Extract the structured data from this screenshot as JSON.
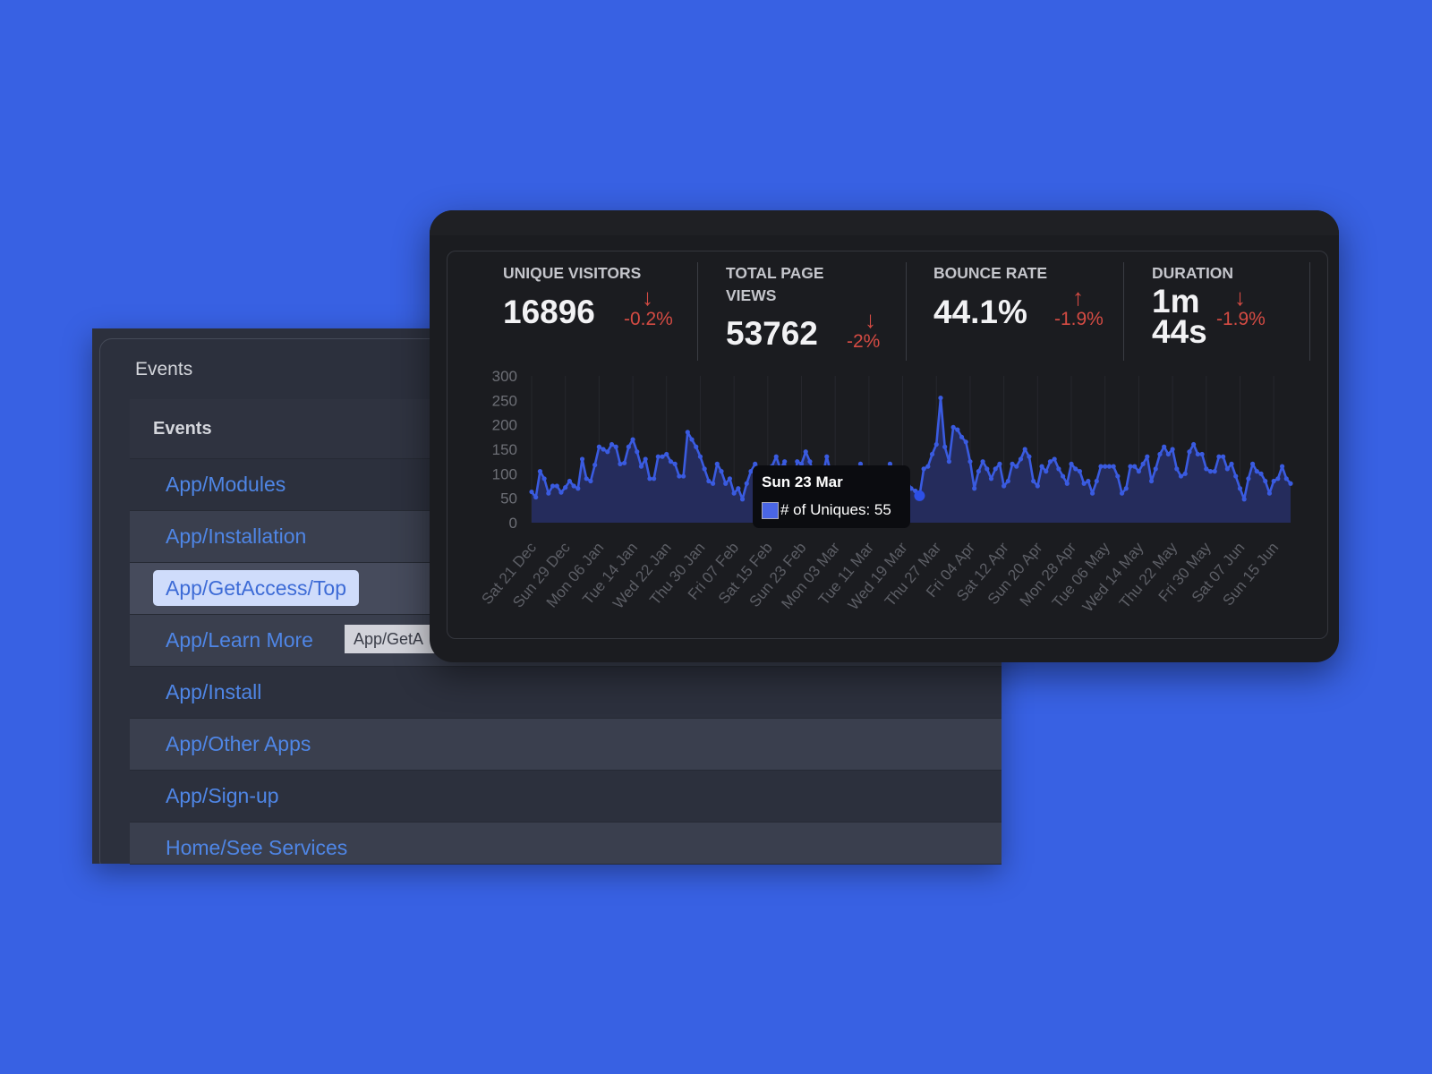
{
  "events_panel": {
    "title": "Events",
    "list_header": "Events",
    "items": [
      "App/Modules",
      "App/Installation",
      "App/GetAccess/Top",
      "App/Learn More",
      "App/Install",
      "App/Other Apps",
      "App/Sign-up",
      "Home/See Services"
    ],
    "selected": "App/GetAccess/Top",
    "hover_tooltip": "App/GetA"
  },
  "stats": [
    {
      "label_lines": [
        "UNIQUE VISITORS"
      ],
      "value_lines": [
        "16896"
      ],
      "change": "-0.2%",
      "direction": "down"
    },
    {
      "label_lines": [
        "TOTAL PAGE",
        "VIEWS"
      ],
      "value_lines": [
        "53762"
      ],
      "change": "-2%",
      "direction": "down"
    },
    {
      "label_lines": [
        "BOUNCE RATE"
      ],
      "value_lines": [
        "44.1%"
      ],
      "change": "-1.9%",
      "direction": "up"
    },
    {
      "label_lines": [
        "DURATION"
      ],
      "value_lines": [
        "1m",
        "44s"
      ],
      "change": "-1.9%",
      "direction": "down"
    }
  ],
  "colors": {
    "background": "#3861e3",
    "line": "#3a5be0",
    "area": "#252c5c",
    "negative": "#d54b43",
    "link": "#4f86e6"
  },
  "icons": {
    "down": "arrow-down-icon",
    "up": "arrow-up-icon"
  },
  "tooltip": {
    "date": "Sun 23 Mar",
    "label": "# of Uniques: 55"
  },
  "chart_data": {
    "type": "area",
    "series": [
      {
        "name": "# of Uniques",
        "values": [
          63,
          52,
          105,
          90,
          60,
          75,
          75,
          62,
          72,
          85,
          75,
          70,
          130,
          90,
          85,
          118,
          155,
          150,
          145,
          160,
          155,
          120,
          122,
          155,
          170,
          145,
          115,
          130,
          90,
          90,
          135,
          135,
          140,
          125,
          120,
          95,
          95,
          185,
          170,
          155,
          135,
          110,
          85,
          80,
          120,
          105,
          80,
          90,
          60,
          70,
          48,
          80,
          105,
          120,
          110,
          95,
          100,
          115,
          135,
          110,
          125,
          65,
          70,
          125,
          120,
          145,
          125,
          95,
          70,
          95,
          135,
          100,
          110,
          90,
          70,
          60,
          60,
          90,
          120,
          105,
          105,
          85,
          60,
          80,
          95,
          120,
          105,
          100,
          100,
          85,
          70,
          65,
          55,
          110,
          115,
          140,
          160,
          255,
          155,
          125,
          195,
          190,
          175,
          165,
          125,
          70,
          105,
          125,
          110,
          90,
          110,
          120,
          75,
          85,
          120,
          115,
          130,
          150,
          135,
          85,
          75,
          115,
          105,
          125,
          130,
          110,
          95,
          80,
          120,
          110,
          105,
          80,
          85,
          60,
          85,
          115,
          115,
          115,
          115,
          95,
          60,
          70,
          115,
          115,
          105,
          120,
          135,
          85,
          110,
          140,
          155,
          140,
          150,
          110,
          95,
          100,
          145,
          160,
          140,
          140,
          110,
          105,
          105,
          135,
          135,
          110,
          120,
          95,
          70,
          48,
          90,
          120,
          105,
          100,
          85,
          60,
          85,
          90,
          115,
          90,
          80
        ]
      }
    ],
    "x_tick_labels": [
      "Sat 21 Dec",
      "Sun 29 Dec",
      "Mon 06 Jan",
      "Tue 14 Jan",
      "Wed 22 Jan",
      "Thu 30 Jan",
      "Fri 07 Feb",
      "Sat 15 Feb",
      "Sun 23 Feb",
      "Mon 03 Mar",
      "Tue 11 Mar",
      "Wed 19 Mar",
      "Thu 27 Mar",
      "Fri 04 Apr",
      "Sat 12 Apr",
      "Sun 20 Apr",
      "Mon 28 Apr",
      "Tue 06 May",
      "Wed 14 May",
      "Thu 22 May",
      "Fri 30 May",
      "Sat 07 Jun",
      "Sun 15 Jun"
    ],
    "x_tick_every_days": 8,
    "y_ticks": [
      0,
      50,
      100,
      150,
      200,
      250,
      300
    ],
    "ylim": [
      0,
      300
    ],
    "highlighted_point": {
      "date": "Sun 23 Mar",
      "value": 55
    },
    "grid": "vertical",
    "legend": "none"
  }
}
